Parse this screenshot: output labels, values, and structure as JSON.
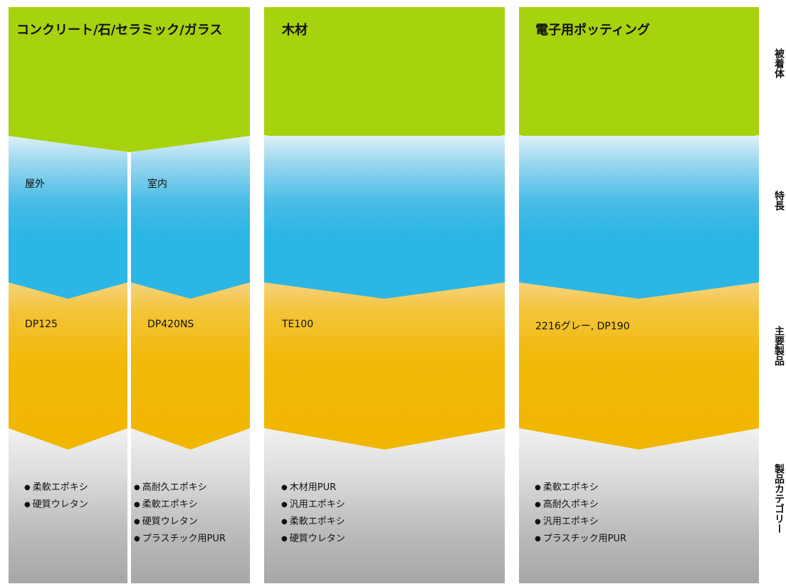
{
  "row_labels": {
    "adherend": "被着体",
    "features": "特長",
    "products": "主要製品",
    "categories": "製品カテゴリー"
  },
  "columns": [
    {
      "title": "コンクリート/石/セラミック/ガラス",
      "sub": [
        {
          "feature": "屋外",
          "product": "DP125",
          "categories": [
            "柔軟エポキシ",
            "硬質ウレタン"
          ]
        },
        {
          "feature": "室内",
          "product": "DP420NS",
          "categories": [
            "高耐久エポキシ",
            "柔軟エポキシ",
            "硬質ウレタン",
            "プラスチック用PUR"
          ]
        }
      ]
    },
    {
      "title": "木材",
      "product": "TE100",
      "categories": [
        "木材用PUR",
        "汎用エポキシ",
        "柔軟エポキシ",
        "硬質ウレタン"
      ]
    },
    {
      "title": "電子用ポッティング",
      "product": "2216グレー, DP190",
      "categories": [
        "柔軟エポキシ",
        "高耐久ポキシ",
        "汎用エポキシ",
        "プラスチック用PUR"
      ]
    }
  ],
  "colors": {
    "green": "#a6d20e",
    "blue": "#2cb6e5",
    "amber": "#f1b600",
    "grey": "#a6a6a6"
  }
}
